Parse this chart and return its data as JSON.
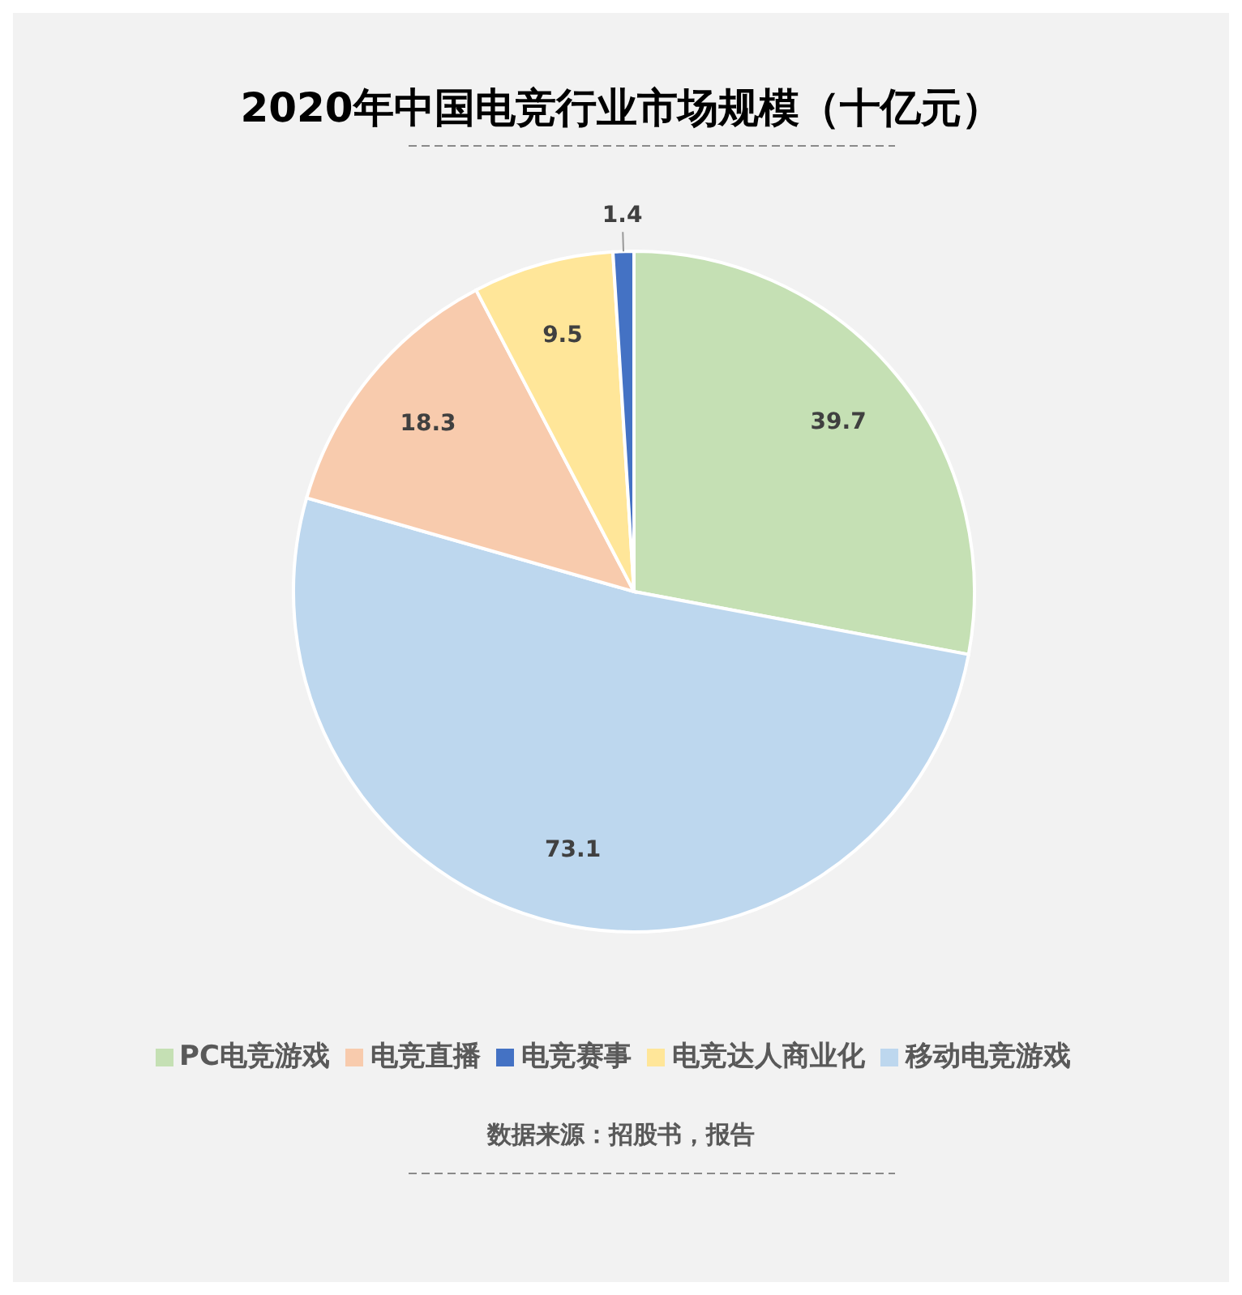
{
  "chart_data": {
    "type": "pie",
    "title": "2020年中国电竞行业市场规模（十亿元）",
    "categories": [
      "PC电竞游戏",
      "移动电竞游戏",
      "电竞直播",
      "电竞达人商业化",
      "电竞赛事"
    ],
    "values": [
      39.7,
      73.1,
      18.3,
      9.5,
      1.4
    ],
    "colors": [
      "#c5e0b4",
      "#bdd7ee",
      "#f8cbad",
      "#ffe699",
      "#4472c4"
    ],
    "data_labels": true,
    "legend": "bottom",
    "annotations": [
      "数据来源：招股书，报告"
    ]
  }
}
